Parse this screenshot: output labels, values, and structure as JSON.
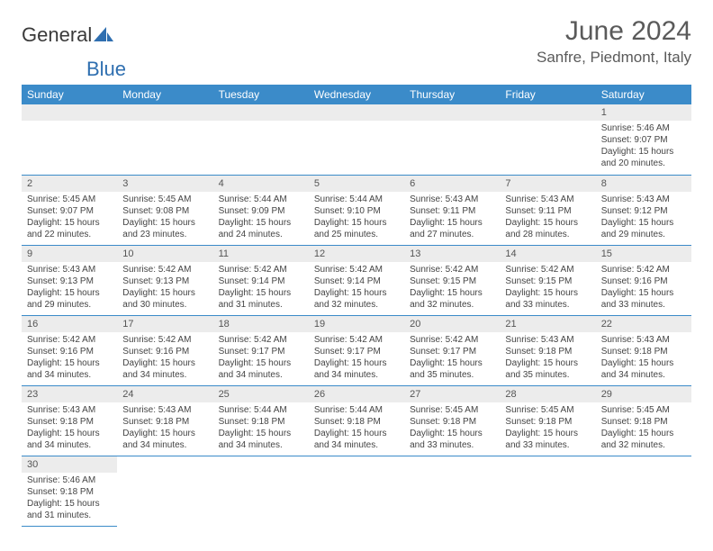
{
  "logo": {
    "text1": "General",
    "text2": "Blue"
  },
  "title": "June 2024",
  "location": "Sanfre, Piedmont, Italy",
  "day_headers": [
    "Sunday",
    "Monday",
    "Tuesday",
    "Wednesday",
    "Thursday",
    "Friday",
    "Saturday"
  ],
  "colors": {
    "header_bg": "#3b8bc9",
    "header_text": "#ffffff",
    "daynum_bg": "#ececec",
    "border": "#3b8bc9"
  },
  "weeks": [
    [
      null,
      null,
      null,
      null,
      null,
      null,
      {
        "n": "1",
        "sr": "Sunrise: 5:46 AM",
        "ss": "Sunset: 9:07 PM",
        "dl1": "Daylight: 15 hours",
        "dl2": "and 20 minutes."
      }
    ],
    [
      {
        "n": "2",
        "sr": "Sunrise: 5:45 AM",
        "ss": "Sunset: 9:07 PM",
        "dl1": "Daylight: 15 hours",
        "dl2": "and 22 minutes."
      },
      {
        "n": "3",
        "sr": "Sunrise: 5:45 AM",
        "ss": "Sunset: 9:08 PM",
        "dl1": "Daylight: 15 hours",
        "dl2": "and 23 minutes."
      },
      {
        "n": "4",
        "sr": "Sunrise: 5:44 AM",
        "ss": "Sunset: 9:09 PM",
        "dl1": "Daylight: 15 hours",
        "dl2": "and 24 minutes."
      },
      {
        "n": "5",
        "sr": "Sunrise: 5:44 AM",
        "ss": "Sunset: 9:10 PM",
        "dl1": "Daylight: 15 hours",
        "dl2": "and 25 minutes."
      },
      {
        "n": "6",
        "sr": "Sunrise: 5:43 AM",
        "ss": "Sunset: 9:11 PM",
        "dl1": "Daylight: 15 hours",
        "dl2": "and 27 minutes."
      },
      {
        "n": "7",
        "sr": "Sunrise: 5:43 AM",
        "ss": "Sunset: 9:11 PM",
        "dl1": "Daylight: 15 hours",
        "dl2": "and 28 minutes."
      },
      {
        "n": "8",
        "sr": "Sunrise: 5:43 AM",
        "ss": "Sunset: 9:12 PM",
        "dl1": "Daylight: 15 hours",
        "dl2": "and 29 minutes."
      }
    ],
    [
      {
        "n": "9",
        "sr": "Sunrise: 5:43 AM",
        "ss": "Sunset: 9:13 PM",
        "dl1": "Daylight: 15 hours",
        "dl2": "and 29 minutes."
      },
      {
        "n": "10",
        "sr": "Sunrise: 5:42 AM",
        "ss": "Sunset: 9:13 PM",
        "dl1": "Daylight: 15 hours",
        "dl2": "and 30 minutes."
      },
      {
        "n": "11",
        "sr": "Sunrise: 5:42 AM",
        "ss": "Sunset: 9:14 PM",
        "dl1": "Daylight: 15 hours",
        "dl2": "and 31 minutes."
      },
      {
        "n": "12",
        "sr": "Sunrise: 5:42 AM",
        "ss": "Sunset: 9:14 PM",
        "dl1": "Daylight: 15 hours",
        "dl2": "and 32 minutes."
      },
      {
        "n": "13",
        "sr": "Sunrise: 5:42 AM",
        "ss": "Sunset: 9:15 PM",
        "dl1": "Daylight: 15 hours",
        "dl2": "and 32 minutes."
      },
      {
        "n": "14",
        "sr": "Sunrise: 5:42 AM",
        "ss": "Sunset: 9:15 PM",
        "dl1": "Daylight: 15 hours",
        "dl2": "and 33 minutes."
      },
      {
        "n": "15",
        "sr": "Sunrise: 5:42 AM",
        "ss": "Sunset: 9:16 PM",
        "dl1": "Daylight: 15 hours",
        "dl2": "and 33 minutes."
      }
    ],
    [
      {
        "n": "16",
        "sr": "Sunrise: 5:42 AM",
        "ss": "Sunset: 9:16 PM",
        "dl1": "Daylight: 15 hours",
        "dl2": "and 34 minutes."
      },
      {
        "n": "17",
        "sr": "Sunrise: 5:42 AM",
        "ss": "Sunset: 9:16 PM",
        "dl1": "Daylight: 15 hours",
        "dl2": "and 34 minutes."
      },
      {
        "n": "18",
        "sr": "Sunrise: 5:42 AM",
        "ss": "Sunset: 9:17 PM",
        "dl1": "Daylight: 15 hours",
        "dl2": "and 34 minutes."
      },
      {
        "n": "19",
        "sr": "Sunrise: 5:42 AM",
        "ss": "Sunset: 9:17 PM",
        "dl1": "Daylight: 15 hours",
        "dl2": "and 34 minutes."
      },
      {
        "n": "20",
        "sr": "Sunrise: 5:42 AM",
        "ss": "Sunset: 9:17 PM",
        "dl1": "Daylight: 15 hours",
        "dl2": "and 35 minutes."
      },
      {
        "n": "21",
        "sr": "Sunrise: 5:43 AM",
        "ss": "Sunset: 9:18 PM",
        "dl1": "Daylight: 15 hours",
        "dl2": "and 35 minutes."
      },
      {
        "n": "22",
        "sr": "Sunrise: 5:43 AM",
        "ss": "Sunset: 9:18 PM",
        "dl1": "Daylight: 15 hours",
        "dl2": "and 34 minutes."
      }
    ],
    [
      {
        "n": "23",
        "sr": "Sunrise: 5:43 AM",
        "ss": "Sunset: 9:18 PM",
        "dl1": "Daylight: 15 hours",
        "dl2": "and 34 minutes."
      },
      {
        "n": "24",
        "sr": "Sunrise: 5:43 AM",
        "ss": "Sunset: 9:18 PM",
        "dl1": "Daylight: 15 hours",
        "dl2": "and 34 minutes."
      },
      {
        "n": "25",
        "sr": "Sunrise: 5:44 AM",
        "ss": "Sunset: 9:18 PM",
        "dl1": "Daylight: 15 hours",
        "dl2": "and 34 minutes."
      },
      {
        "n": "26",
        "sr": "Sunrise: 5:44 AM",
        "ss": "Sunset: 9:18 PM",
        "dl1": "Daylight: 15 hours",
        "dl2": "and 34 minutes."
      },
      {
        "n": "27",
        "sr": "Sunrise: 5:45 AM",
        "ss": "Sunset: 9:18 PM",
        "dl1": "Daylight: 15 hours",
        "dl2": "and 33 minutes."
      },
      {
        "n": "28",
        "sr": "Sunrise: 5:45 AM",
        "ss": "Sunset: 9:18 PM",
        "dl1": "Daylight: 15 hours",
        "dl2": "and 33 minutes."
      },
      {
        "n": "29",
        "sr": "Sunrise: 5:45 AM",
        "ss": "Sunset: 9:18 PM",
        "dl1": "Daylight: 15 hours",
        "dl2": "and 32 minutes."
      }
    ],
    [
      {
        "n": "30",
        "sr": "Sunrise: 5:46 AM",
        "ss": "Sunset: 9:18 PM",
        "dl1": "Daylight: 15 hours",
        "dl2": "and 31 minutes."
      },
      null,
      null,
      null,
      null,
      null,
      null
    ]
  ]
}
